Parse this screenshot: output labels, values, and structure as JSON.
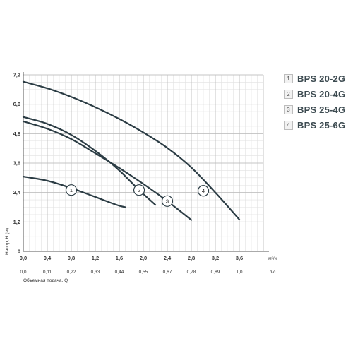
{
  "chart_data": {
    "type": "line",
    "title": "",
    "xlabel": "Объемная подача, Q",
    "ylabel": "Напор, H (м)",
    "x_unit_primary": "м³/ч",
    "x_unit_secondary": "л/с",
    "xlim": [
      0,
      4.0
    ],
    "ylim": [
      0,
      7.2
    ],
    "x_ticks": [
      "0,0",
      "0,4",
      "0,8",
      "1,2",
      "1,6",
      "2,0",
      "2,4",
      "2,8",
      "3,2",
      "3,6"
    ],
    "x_ticks_secondary": [
      "0,0",
      "0,11",
      "0,22",
      "0,33",
      "0,44",
      "0,55",
      "0,67",
      "0,78",
      "0,89",
      "1,0"
    ],
    "y_ticks": [
      "0",
      "1,2",
      "2,4",
      "3,6",
      "4,8",
      "6,0",
      "7,2"
    ],
    "grid": true,
    "legend_position": "right",
    "series": [
      {
        "name": "BPS 20-2G",
        "marker": "1",
        "label_at": [
          0.8,
          2.5
        ],
        "x": [
          0,
          0.4,
          0.8,
          1.2,
          1.6,
          1.7
        ],
        "y": [
          3.05,
          2.88,
          2.58,
          2.22,
          1.86,
          1.8
        ]
      },
      {
        "name": "BPS 20-4G",
        "marker": "2",
        "label_at": [
          1.93,
          2.5
        ],
        "x": [
          0,
          0.4,
          0.8,
          1.2,
          1.6,
          1.93,
          2.2
        ],
        "y": [
          5.48,
          5.2,
          4.75,
          4.1,
          3.3,
          2.5,
          1.9
        ]
      },
      {
        "name": "BPS 25-4G",
        "marker": "3",
        "label_at": [
          2.4,
          2.05
        ],
        "x": [
          0,
          0.4,
          0.8,
          1.2,
          1.6,
          2.0,
          2.4,
          2.8
        ],
        "y": [
          5.3,
          5.0,
          4.58,
          4.0,
          3.4,
          2.75,
          2.05,
          1.28
        ]
      },
      {
        "name": "BPS 25-6G",
        "marker": "4",
        "label_at": [
          3.0,
          2.47
        ],
        "x": [
          0,
          0.4,
          0.8,
          1.2,
          1.6,
          2.0,
          2.4,
          2.8,
          3.2,
          3.6
        ],
        "y": [
          6.92,
          6.65,
          6.3,
          5.88,
          5.4,
          4.85,
          4.22,
          3.42,
          2.4,
          1.3
        ]
      }
    ]
  }
}
